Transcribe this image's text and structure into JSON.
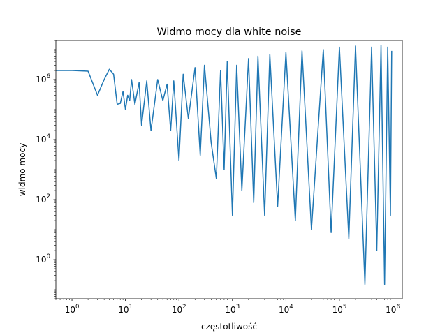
{
  "chart_data": {
    "type": "line",
    "title": "Widmo mocy dla white noise",
    "xlabel": "częstotliwość",
    "ylabel": "widmo mocy",
    "x_scale": "log",
    "y_scale": "log",
    "xlim": [
      0.5,
      1500000
    ],
    "ylim": [
      0.05,
      20000000
    ],
    "grid": false,
    "line_color": "#1f77b4",
    "x_ticks": [
      {
        "value": 1,
        "base": "10",
        "exp": "0"
      },
      {
        "value": 10,
        "base": "10",
        "exp": "1"
      },
      {
        "value": 100,
        "base": "10",
        "exp": "2"
      },
      {
        "value": 1000,
        "base": "10",
        "exp": "3"
      },
      {
        "value": 10000,
        "base": "10",
        "exp": "4"
      },
      {
        "value": 100000,
        "base": "10",
        "exp": "5"
      },
      {
        "value": 1000000,
        "base": "10",
        "exp": "6"
      }
    ],
    "y_ticks": [
      {
        "value": 1,
        "base": "10",
        "exp": "0"
      },
      {
        "value": 100,
        "base": "10",
        "exp": "2"
      },
      {
        "value": 10000,
        "base": "10",
        "exp": "4"
      },
      {
        "value": 1000000,
        "base": "10",
        "exp": "6"
      }
    ],
    "series": [
      {
        "x": [
          0.5,
          1,
          2,
          3,
          4,
          5,
          6,
          7,
          8,
          9,
          10,
          11,
          12,
          13,
          15,
          18,
          20,
          25,
          30,
          40,
          50,
          60,
          70,
          80,
          100,
          120,
          150,
          200,
          250,
          300,
          400,
          500,
          600,
          700,
          800,
          1000,
          1200,
          1500,
          2000,
          2500,
          3000,
          4000,
          5000,
          7000,
          10000,
          15000,
          20000,
          30000,
          50000,
          70000,
          100000,
          150000,
          200000,
          300000,
          400000,
          500000,
          600000,
          700000,
          800000,
          900000,
          950000
        ],
        "y": [
          2000000,
          2000000,
          1900000,
          300000,
          1000000,
          2200000,
          1500000,
          150000,
          160000,
          400000,
          100000,
          300000,
          200000,
          1000000,
          150000,
          800000,
          30000,
          900000,
          20000,
          1000000,
          200000,
          700000,
          20000,
          900000,
          2000,
          1500000,
          50000,
          2500000,
          3000,
          3000000,
          8000,
          500,
          2000000,
          1000,
          4000000,
          30,
          3000000,
          200,
          5000000,
          80,
          6000000,
          30,
          7000000,
          60,
          8000000,
          20,
          9000000,
          10,
          10000000,
          8,
          12000000,
          5,
          13000000,
          0.15,
          12000000,
          2,
          14000000,
          0.15,
          12000000,
          30,
          9000000
        ]
      }
    ]
  }
}
